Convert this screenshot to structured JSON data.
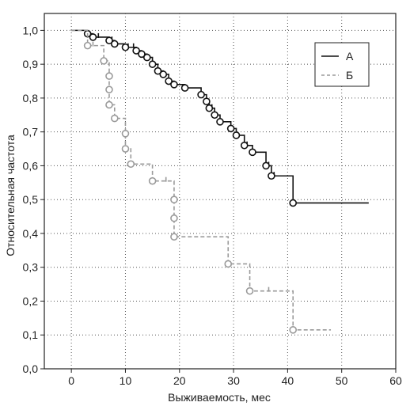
{
  "chart_data": {
    "type": "line",
    "subtype": "kaplan-meier step curves with censor markers",
    "title": "",
    "xlabel": "Выживаемость, мес",
    "ylabel": "Относительная частота",
    "xlim": [
      -5,
      60
    ],
    "ylim": [
      0,
      1.05
    ],
    "x_ticks": [
      0,
      10,
      20,
      30,
      40,
      50,
      60
    ],
    "x_tick_labels": [
      "0",
      "10",
      "20",
      "30",
      "40",
      "50",
      "60"
    ],
    "y_ticks": [
      0,
      0.1,
      0.2,
      0.3,
      0.4,
      0.5,
      0.6,
      0.7,
      0.8,
      0.9,
      1.0
    ],
    "y_tick_labels": [
      "0,0",
      "0,1",
      "0,2",
      "0,3",
      "0,4",
      "0,5",
      "0,6",
      "0,7",
      "0,8",
      "0,9",
      "1,0"
    ],
    "grid": true,
    "legend_position": "top-right",
    "series": [
      {
        "name": "А",
        "color": "#111111",
        "line_style": "solid",
        "x": [
          0,
          3,
          4,
          7,
          8,
          10,
          12,
          13,
          14,
          15,
          16,
          17,
          18,
          19,
          21,
          24,
          25,
          25.5,
          26.5,
          27.5,
          29.5,
          30.5,
          32,
          33.5,
          36,
          37,
          41,
          55
        ],
        "y": [
          1.0,
          0.99,
          0.98,
          0.97,
          0.96,
          0.95,
          0.94,
          0.93,
          0.92,
          0.9,
          0.88,
          0.87,
          0.85,
          0.84,
          0.83,
          0.81,
          0.79,
          0.77,
          0.75,
          0.73,
          0.71,
          0.69,
          0.66,
          0.64,
          0.6,
          0.57,
          0.49,
          0.49
        ],
        "circle_points_x": [
          3,
          4,
          7,
          8,
          10,
          12,
          13,
          14,
          15,
          16,
          17,
          18,
          19,
          21,
          24,
          25,
          25.5,
          26.5,
          27.5,
          29.5,
          30.5,
          32,
          33.5,
          36,
          37,
          41
        ],
        "circle_points_y": [
          0.99,
          0.98,
          0.97,
          0.96,
          0.95,
          0.94,
          0.93,
          0.92,
          0.9,
          0.88,
          0.87,
          0.85,
          0.84,
          0.83,
          0.81,
          0.79,
          0.77,
          0.75,
          0.73,
          0.71,
          0.69,
          0.66,
          0.64,
          0.6,
          0.57,
          0.49
        ],
        "censor_x": [
          5,
          7.5,
          10.5,
          11.5,
          24,
          26,
          32.5,
          36.5,
          37.5
        ]
      },
      {
        "name": "Б",
        "color": "#9a9a9a",
        "line_style": "dashed",
        "x": [
          0,
          3,
          6,
          7,
          7,
          7,
          8,
          10,
          10,
          11,
          15,
          19,
          19,
          19,
          29,
          33,
          41,
          48
        ],
        "y": [
          1.0,
          0.955,
          0.91,
          0.865,
          0.825,
          0.78,
          0.74,
          0.695,
          0.65,
          0.605,
          0.555,
          0.5,
          0.445,
          0.39,
          0.31,
          0.23,
          0.115,
          0.115
        ],
        "circle_points_x": [
          3,
          6,
          7,
          7,
          7,
          8,
          10,
          10,
          11,
          15,
          19,
          19,
          19,
          29,
          33,
          41
        ],
        "circle_points_y": [
          0.955,
          0.91,
          0.865,
          0.825,
          0.78,
          0.74,
          0.695,
          0.65,
          0.605,
          0.555,
          0.5,
          0.445,
          0.39,
          0.31,
          0.23,
          0.115
        ],
        "censor_x": [
          4,
          17.5,
          36.5
        ]
      }
    ]
  }
}
